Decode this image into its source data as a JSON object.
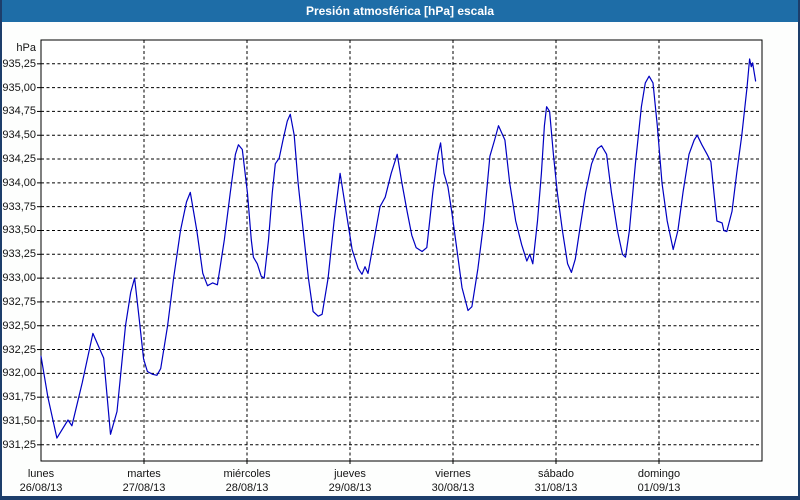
{
  "window": {
    "title": "Presión atmosférica [hPa] escala"
  },
  "colors": {
    "titlebar_bg": "#1e6da7",
    "window_border": "#1d3e6b",
    "plot_bg": "#ffffff",
    "frame": "#000000",
    "grid": "#000000",
    "text": "#131313",
    "line": "#0000c2"
  },
  "chart_data": {
    "type": "line",
    "title": "Presión atmosférica [hPa] escala",
    "unit_label": "hPa",
    "ylabel": "hPa",
    "ylim": [
      931.08,
      935.5
    ],
    "grid": "dashed horizontal per 0.25 hPa, dashed vertical per day",
    "legend": "none",
    "yticks": [
      {
        "value": 935.25,
        "label": "935,25"
      },
      {
        "value": 935.0,
        "label": "935,00"
      },
      {
        "value": 934.75,
        "label": "934,75"
      },
      {
        "value": 934.5,
        "label": "934,50"
      },
      {
        "value": 934.25,
        "label": "934,25"
      },
      {
        "value": 934.0,
        "label": "934,00"
      },
      {
        "value": 933.75,
        "label": "933,75"
      },
      {
        "value": 933.5,
        "label": "933,50"
      },
      {
        "value": 933.25,
        "label": "933,25"
      },
      {
        "value": 933.0,
        "label": "933,00"
      },
      {
        "value": 932.75,
        "label": "932,75"
      },
      {
        "value": 932.5,
        "label": "932,50"
      },
      {
        "value": 932.25,
        "label": "932,25"
      },
      {
        "value": 932.0,
        "label": "932,00"
      },
      {
        "value": 931.75,
        "label": "931,75"
      },
      {
        "value": 931.5,
        "label": "931,50"
      },
      {
        "value": 931.25,
        "label": "931,25"
      }
    ],
    "x_axis": {
      "total_hours": 168,
      "days": [
        {
          "name": "lunes",
          "date": "26/08/13"
        },
        {
          "name": "martes",
          "date": "27/08/13"
        },
        {
          "name": "miércoles",
          "date": "28/08/13"
        },
        {
          "name": "jueves",
          "date": "29/08/13"
        },
        {
          "name": "viernes",
          "date": "30/08/13"
        },
        {
          "name": "sábado",
          "date": "31/08/13"
        },
        {
          "name": "domingo",
          "date": "01/09/13"
        }
      ]
    },
    "series": [
      {
        "name": "Presión atmosférica",
        "color": "#0000c2",
        "points": [
          [
            0,
            932.18
          ],
          [
            1.6,
            931.75
          ],
          [
            3.7,
            931.32
          ],
          [
            6.3,
            931.51
          ],
          [
            7.2,
            931.45
          ],
          [
            9.6,
            931.9
          ],
          [
            12.1,
            932.42
          ],
          [
            14.6,
            932.16
          ],
          [
            16.2,
            931.36
          ],
          [
            17.7,
            931.6
          ],
          [
            19.7,
            932.5
          ],
          [
            20.9,
            932.85
          ],
          [
            21.8,
            933.0
          ],
          [
            22.8,
            932.6
          ],
          [
            23.9,
            932.15
          ],
          [
            24.8,
            932.02
          ],
          [
            26.0,
            931.99
          ],
          [
            27.0,
            931.98
          ],
          [
            27.9,
            932.05
          ],
          [
            29.5,
            932.5
          ],
          [
            30.9,
            933.0
          ],
          [
            32.5,
            933.5
          ],
          [
            33.9,
            933.8
          ],
          [
            34.8,
            933.9
          ],
          [
            36.3,
            933.5
          ],
          [
            37.7,
            933.05
          ],
          [
            38.8,
            932.92
          ],
          [
            40.0,
            932.95
          ],
          [
            41.1,
            932.93
          ],
          [
            42.7,
            933.4
          ],
          [
            44.1,
            933.9
          ],
          [
            45.3,
            934.3
          ],
          [
            46.0,
            934.4
          ],
          [
            46.9,
            934.35
          ],
          [
            48.1,
            933.9
          ],
          [
            49.0,
            933.4
          ],
          [
            49.5,
            933.22
          ],
          [
            50.4,
            933.15
          ],
          [
            51.3,
            933.02
          ],
          [
            52.0,
            933.0
          ],
          [
            53.0,
            933.4
          ],
          [
            53.9,
            933.9
          ],
          [
            54.6,
            934.2
          ],
          [
            55.5,
            934.26
          ],
          [
            56.4,
            934.45
          ],
          [
            57.4,
            934.65
          ],
          [
            58.1,
            934.72
          ],
          [
            59.0,
            934.5
          ],
          [
            59.9,
            934.0
          ],
          [
            61.1,
            933.5
          ],
          [
            62.3,
            933.0
          ],
          [
            63.4,
            932.65
          ],
          [
            64.6,
            932.6
          ],
          [
            65.5,
            932.62
          ],
          [
            66.9,
            933.0
          ],
          [
            68.3,
            933.6
          ],
          [
            69.7,
            934.1
          ],
          [
            71.1,
            933.7
          ],
          [
            72.5,
            933.3
          ],
          [
            73.9,
            933.1
          ],
          [
            74.8,
            933.04
          ],
          [
            75.5,
            933.12
          ],
          [
            76.2,
            933.05
          ],
          [
            77.6,
            933.4
          ],
          [
            79.0,
            933.75
          ],
          [
            80.2,
            933.85
          ],
          [
            81.6,
            934.1
          ],
          [
            83.0,
            934.3
          ],
          [
            84.1,
            934.0
          ],
          [
            85.3,
            933.7
          ],
          [
            86.4,
            933.45
          ],
          [
            87.4,
            933.32
          ],
          [
            88.8,
            933.28
          ],
          [
            89.9,
            933.32
          ],
          [
            91.3,
            933.9
          ],
          [
            92.5,
            934.3
          ],
          [
            93.1,
            934.42
          ],
          [
            93.9,
            934.1
          ],
          [
            94.8,
            933.96
          ],
          [
            95.7,
            933.7
          ],
          [
            96.9,
            933.3
          ],
          [
            98.1,
            932.9
          ],
          [
            99.5,
            932.66
          ],
          [
            100.4,
            932.7
          ],
          [
            101.8,
            933.1
          ],
          [
            103.2,
            933.6
          ],
          [
            104.6,
            934.28
          ],
          [
            105.7,
            934.45
          ],
          [
            106.6,
            934.6
          ],
          [
            108.1,
            934.45
          ],
          [
            109.2,
            934.0
          ],
          [
            110.6,
            933.6
          ],
          [
            112.0,
            933.35
          ],
          [
            113.2,
            933.18
          ],
          [
            113.9,
            933.25
          ],
          [
            114.6,
            933.15
          ],
          [
            115.7,
            933.6
          ],
          [
            116.6,
            934.1
          ],
          [
            117.3,
            934.6
          ],
          [
            117.8,
            934.8
          ],
          [
            118.5,
            934.75
          ],
          [
            119.4,
            934.3
          ],
          [
            120.3,
            933.9
          ],
          [
            121.5,
            933.5
          ],
          [
            122.7,
            933.15
          ],
          [
            123.6,
            933.06
          ],
          [
            124.5,
            933.2
          ],
          [
            125.5,
            933.5
          ],
          [
            126.9,
            933.9
          ],
          [
            128.3,
            934.2
          ],
          [
            129.7,
            934.36
          ],
          [
            130.6,
            934.39
          ],
          [
            131.8,
            934.3
          ],
          [
            132.9,
            933.9
          ],
          [
            134.3,
            933.5
          ],
          [
            135.5,
            933.25
          ],
          [
            136.2,
            933.22
          ],
          [
            137.1,
            933.5
          ],
          [
            138.5,
            934.2
          ],
          [
            139.9,
            934.8
          ],
          [
            140.8,
            935.05
          ],
          [
            141.7,
            935.12
          ],
          [
            142.6,
            935.05
          ],
          [
            143.6,
            934.6
          ],
          [
            144.7,
            934.0
          ],
          [
            145.9,
            933.6
          ],
          [
            147.3,
            933.3
          ],
          [
            148.4,
            933.5
          ],
          [
            149.6,
            933.9
          ],
          [
            151.0,
            934.3
          ],
          [
            152.2,
            934.45
          ],
          [
            152.9,
            934.5
          ],
          [
            154.0,
            934.4
          ],
          [
            155.2,
            934.3
          ],
          [
            156.1,
            934.22
          ],
          [
            156.8,
            933.9
          ],
          [
            157.5,
            933.6
          ],
          [
            158.7,
            933.58
          ],
          [
            159.1,
            933.5
          ],
          [
            159.8,
            933.49
          ],
          [
            161.0,
            933.7
          ],
          [
            162.1,
            934.1
          ],
          [
            163.3,
            934.5
          ],
          [
            164.5,
            935.0
          ],
          [
            165.1,
            935.3
          ],
          [
            165.5,
            935.22
          ],
          [
            165.8,
            935.26
          ],
          [
            166.5,
            935.07
          ]
        ]
      }
    ]
  }
}
